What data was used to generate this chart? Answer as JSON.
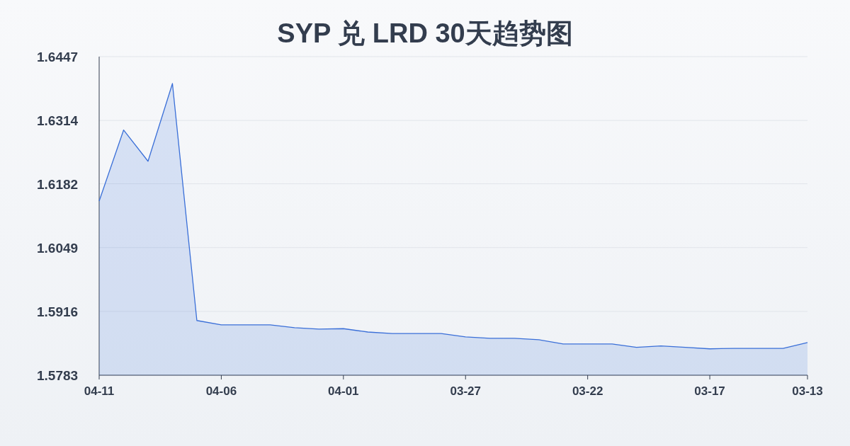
{
  "chart_data": {
    "type": "area",
    "title": "SYP 兑 LRD 30天趋势图",
    "categories": [
      "04-11",
      null,
      null,
      null,
      null,
      "04-06",
      null,
      null,
      null,
      null,
      "04-01",
      null,
      null,
      null,
      null,
      "03-27",
      null,
      null,
      null,
      null,
      "03-22",
      null,
      null,
      null,
      null,
      "03-17",
      null,
      null,
      null,
      "03-13"
    ],
    "values": [
      1.6146,
      1.6294,
      1.6229,
      1.6391,
      1.5897,
      1.5888,
      1.5888,
      1.5888,
      1.5882,
      1.5879,
      1.588,
      1.5873,
      1.587,
      1.587,
      1.587,
      1.5863,
      1.586,
      1.586,
      1.5857,
      1.5848,
      1.5848,
      1.5848,
      1.5841,
      1.5844,
      1.5841,
      1.5838,
      1.5839,
      1.5839,
      1.5839,
      1.5851
    ],
    "color": "#3a6fd8",
    "ylim": [
      1.5783,
      1.6447
    ],
    "yticks": [
      1.5783,
      1.5916,
      1.6049,
      1.6182,
      1.6314,
      1.6447
    ],
    "grid": "y"
  }
}
